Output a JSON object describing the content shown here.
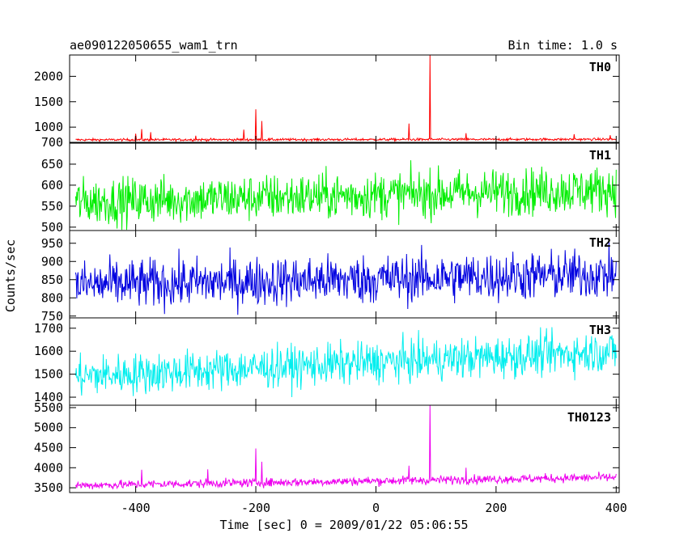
{
  "chart_data": {
    "type": "line",
    "title": "ae090122050655_wam1_trn",
    "subtitle": "Bin time: 1.0 s",
    "xlabel": "Time [sec] 0 = 2009/01/22 05:06:55",
    "ylabel": "Counts/sec",
    "xlim": [
      -510,
      405
    ],
    "x_data_range": [
      -500,
      400
    ],
    "xticks": [
      "-400",
      "-200",
      "0",
      "200",
      "400"
    ],
    "xtick_values": [
      -400,
      -200,
      0,
      200,
      400
    ],
    "grid": false,
    "panels": [
      {
        "name": "TH0",
        "color": "#ff0000",
        "ylim": [
          700,
          2420
        ],
        "yticks": [
          "700",
          "1000",
          "1500",
          "2000"
        ],
        "ytick_values": [
          700,
          1000,
          1500,
          2000
        ],
        "baseline_start": 750,
        "baseline_end": 760,
        "noise": 12,
        "spikes": [
          {
            "x": -400,
            "y": 870
          },
          {
            "x": -390,
            "y": 960
          },
          {
            "x": -375,
            "y": 900
          },
          {
            "x": -300,
            "y": 830
          },
          {
            "x": -220,
            "y": 950
          },
          {
            "x": -200,
            "y": 1350
          },
          {
            "x": -190,
            "y": 1120
          },
          {
            "x": 55,
            "y": 1070
          },
          {
            "x": 90,
            "y": 2420
          },
          {
            "x": 150,
            "y": 880
          },
          {
            "x": 330,
            "y": 860
          },
          {
            "x": 390,
            "y": 840
          }
        ]
      },
      {
        "name": "TH1",
        "color": "#00ee00",
        "ylim": [
          492,
          700
        ],
        "yticks": [
          "500",
          "550",
          "600",
          "650"
        ],
        "ytick_values": [
          500,
          550,
          600,
          650
        ],
        "baseline_start": 560,
        "baseline_end": 590,
        "noise": 28,
        "spikes": []
      },
      {
        "name": "TH2",
        "color": "#0000e0",
        "ylim": [
          745,
          985
        ],
        "yticks": [
          "750",
          "800",
          "850",
          "900",
          "950"
        ],
        "ytick_values": [
          750,
          800,
          850,
          900,
          950
        ],
        "baseline_start": 835,
        "baseline_end": 865,
        "noise": 34,
        "spikes": []
      },
      {
        "name": "TH3",
        "color": "#00eeee",
        "ylim": [
          1365,
          1745
        ],
        "yticks": [
          "1400",
          "1500",
          "1600",
          "1700"
        ],
        "ytick_values": [
          1400,
          1500,
          1600,
          1700
        ],
        "baseline_start": 1490,
        "baseline_end": 1600,
        "noise": 45,
        "spikes": []
      },
      {
        "name": "TH0123",
        "color": "#ee00ee",
        "ylim": [
          3380,
          5560
        ],
        "yticks": [
          "3500",
          "4000",
          "4500",
          "5000",
          "5500"
        ],
        "ytick_values": [
          3500,
          4000,
          4500,
          5000,
          5500
        ],
        "baseline_start": 3560,
        "baseline_end": 3760,
        "noise": 55,
        "spikes": [
          {
            "x": -390,
            "y": 3950
          },
          {
            "x": -280,
            "y": 3960
          },
          {
            "x": -200,
            "y": 4480
          },
          {
            "x": -190,
            "y": 4150
          },
          {
            "x": 55,
            "y": 4050
          },
          {
            "x": 90,
            "y": 5560
          },
          {
            "x": 150,
            "y": 4000
          }
        ]
      }
    ]
  }
}
